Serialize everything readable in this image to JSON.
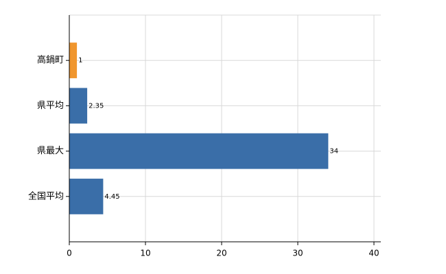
{
  "chart_data": {
    "type": "bar",
    "orientation": "horizontal",
    "categories": [
      "高鍋町",
      "県平均",
      "県最大",
      "全国平均"
    ],
    "values": [
      1,
      2.35,
      34,
      4.45
    ],
    "colors": [
      "#f0962e",
      "#3a6ea8",
      "#3a6ea8",
      "#3a6ea8"
    ],
    "xlim": [
      0,
      40
    ],
    "xticks": [
      0,
      10,
      20,
      30,
      40
    ],
    "grid": true
  }
}
